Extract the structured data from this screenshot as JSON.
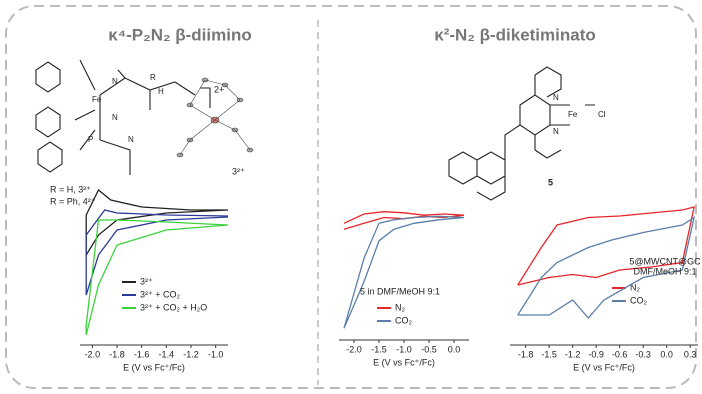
{
  "header": {
    "left_title": "κ⁴-P₂N₂ β-diimino",
    "right_title": "κ²-N₂ β-diketiminato"
  },
  "structures": {
    "charge": "2+",
    "r_h": "R = H, 3²⁺",
    "r_ph": "R = Ph, 4²⁺",
    "crystal_label": "3²⁺",
    "compound_label": "5",
    "atoms": [
      "R",
      "H",
      "N",
      "N",
      "Fe",
      "N",
      "P",
      "N",
      "N",
      "Fe",
      "Cl"
    ]
  },
  "chart_data": [
    {
      "type": "line",
      "xlabel": "E (V vs Fc⁺/Fc)",
      "xlim": [
        -2.1,
        -0.9
      ],
      "ylim": [
        -12,
        4
      ],
      "xticks": [
        {
          "value": -2,
          "label": "-2.0"
        },
        -1.8,
        -1.6,
        -1.4,
        -1.2,
        {
          "value": -1,
          "label": "-1.0"
        }
      ],
      "series": [
        {
          "name": "3²⁺",
          "color": "#222222",
          "x": [
            -0.9,
            -1.4,
            -1.8,
            -1.95,
            -2.05,
            -2.05,
            -1.95,
            -1.85,
            -1.6,
            -1.2,
            -0.9
          ],
          "values": [
            1.5,
            1.2,
            0.5,
            -1,
            -3,
            1,
            3.5,
            2.5,
            1.8,
            1.5,
            1.5
          ]
        },
        {
          "name": "3²⁺ + CO₂",
          "color": "#2a3a9a",
          "x": [
            -0.9,
            -1.4,
            -1.8,
            -1.95,
            -2.05,
            -2.05,
            -1.9,
            -1.8,
            -1.4,
            -0.9
          ],
          "values": [
            0.8,
            0.5,
            -0.5,
            -3,
            -7,
            -1,
            1.5,
            1.2,
            1,
            0.9
          ]
        },
        {
          "name": "3²⁺ + CO₂ + H₂O",
          "color": "#3cd23c",
          "x": [
            -0.9,
            -1.4,
            -1.8,
            -1.95,
            -2.05,
            -2.05,
            -1.95,
            -1.8,
            -1.4,
            -0.9
          ],
          "values": [
            0,
            -0.5,
            -2,
            -6,
            -11,
            -10,
            0.5,
            0.5,
            0.3,
            0
          ]
        }
      ]
    },
    {
      "type": "line",
      "xlabel": "E (V vs Fc⁺/Fc)",
      "xlim": [
        -2.3,
        0.3
      ],
      "ylim": [
        -10,
        2
      ],
      "annotation": [
        "5 in DMF/MeOH 9:1"
      ],
      "xticks": [
        {
          "value": -2,
          "label": "-2.0"
        },
        -1.5,
        {
          "value": -1,
          "label": "-1.0"
        },
        -0.5,
        {
          "value": 0,
          "label": "0.0"
        }
      ],
      "series": [
        {
          "name": "N₂",
          "color": "#e8262a",
          "x": [
            -2.2,
            -1.8,
            -1.4,
            -1.0,
            -0.6,
            -0.2,
            0.2,
            -0.2,
            -0.6,
            -1.0,
            -1.4,
            -1.8,
            -2.2
          ],
          "values": [
            -0.5,
            0,
            0.5,
            0.4,
            0.6,
            0.5,
            0.7,
            0.8,
            0.7,
            0.9,
            1,
            0.8,
            0
          ]
        },
        {
          "name": "CO₂",
          "color": "#5b7fa8",
          "x": [
            -2.2,
            -1.8,
            -1.5,
            -1.2,
            -0.8,
            -0.3,
            0.2,
            -0.3,
            -0.8,
            -1.2,
            -1.5,
            -1.8,
            -2.2
          ],
          "values": [
            -9,
            -5,
            -1.5,
            -0.5,
            0,
            0.3,
            0.5,
            0.6,
            0.5,
            0.3,
            0,
            -3,
            -9
          ]
        }
      ]
    },
    {
      "type": "line",
      "xlabel": "E (V vs Fc⁺/Fc)",
      "xlim": [
        -2.0,
        0.4
      ],
      "ylim": [
        -6,
        4
      ],
      "annotation": [
        "5@MWCNT@GC",
        "DMF/MeOH 9:1"
      ],
      "xticks": [
        -1.8,
        -1.5,
        -1.2,
        -0.9,
        -0.6,
        -0.3,
        {
          "value": 0,
          "label": "0.0"
        },
        0.3
      ],
      "series": [
        {
          "name": "N₂",
          "color": "#e8262a",
          "x": [
            -1.9,
            -1.6,
            -1.4,
            -1.0,
            -0.6,
            -0.2,
            0.2,
            0.35,
            0.2,
            -0.2,
            -0.6,
            -0.9,
            -1.2,
            -1.5,
            -1.9
          ],
          "values": [
            -2,
            0.5,
            2,
            2.5,
            2.6,
            2.8,
            3,
            3.2,
            -0.5,
            -0.8,
            -1,
            -1.5,
            -1.3,
            -1.5,
            -2
          ]
        },
        {
          "name": "CO₂",
          "color": "#5b7fa8",
          "x": [
            -1.9,
            -1.6,
            -1.4,
            -1.2,
            -1.0,
            -0.7,
            -0.3,
            0.2,
            0.35,
            0.2,
            -0.3,
            -0.8,
            -1.0,
            -1.2,
            -1.5,
            -1.9
          ],
          "values": [
            -4,
            -1.5,
            -0.5,
            0,
            0.5,
            1,
            1.5,
            2,
            2.5,
            -1,
            -1.5,
            -3,
            -4.2,
            -3,
            -4,
            -4
          ]
        }
      ]
    }
  ]
}
